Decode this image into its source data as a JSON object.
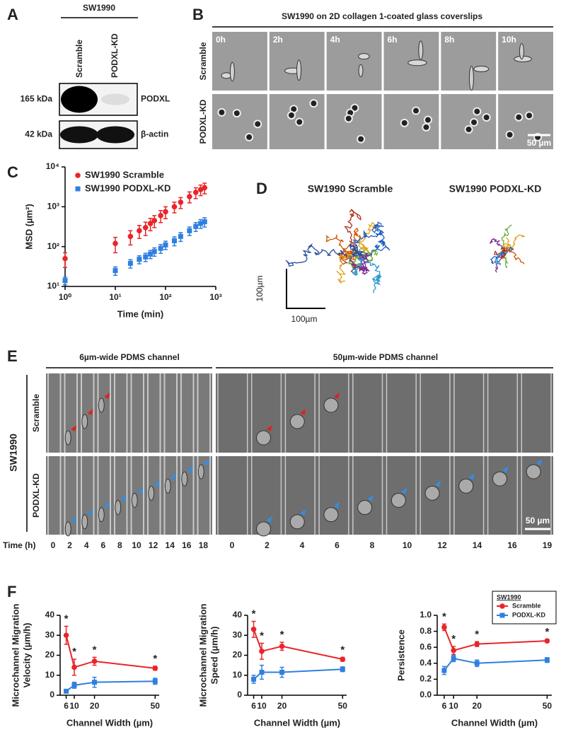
{
  "panel_labels": [
    "A",
    "B",
    "C",
    "D",
    "E",
    "F"
  ],
  "panel_a": {
    "cell_line": "SW1990",
    "lanes": [
      "Scramble",
      "PODXL-KD"
    ],
    "bands": [
      {
        "size": "165 kDa",
        "protein": "PODXL"
      },
      {
        "size": "42 kDa",
        "protein": "β-actin"
      }
    ]
  },
  "panel_b": {
    "title": "SW1990 on 2D collagen 1-coated glass coverslips",
    "times": [
      "0h",
      "2h",
      "4h",
      "6h",
      "8h",
      "10h"
    ],
    "rows": [
      "Scramble",
      "PODXL-KD"
    ],
    "scale_bar": "50 µm"
  },
  "panel_d": {
    "titles": [
      "SW1990 Scramble",
      "SW1990 PODXL-KD"
    ],
    "scale_labels": [
      "100µm",
      "100µm"
    ]
  },
  "panel_e": {
    "channels": [
      "6µm-wide PDMS channel",
      "50µm-wide PDMS channel"
    ],
    "cell_line": "SW1990",
    "rows": [
      "Scramble",
      "PODXL-KD"
    ],
    "scale_bar": "50 µm",
    "time_label": "Time (h)",
    "times_6um": [
      "0",
      "2",
      "4",
      "6",
      "8",
      "10",
      "12",
      "14",
      "16",
      "18"
    ],
    "times_50um": [
      "0",
      "2",
      "4",
      "6",
      "8",
      "10",
      "12",
      "14",
      "16",
      "19"
    ]
  },
  "chart_data": [
    {
      "type": "line",
      "xlabel": "Time (min)",
      "ylabel": "MSD (µm²)",
      "log_x": true,
      "log_y": true,
      "connect": false,
      "legend": "upper left",
      "xlim": [
        1,
        1000
      ],
      "ylim": [
        10,
        10000
      ],
      "xticks": [
        {
          "value": 1,
          "label": "10⁰"
        },
        {
          "value": 10,
          "label": "10¹"
        },
        {
          "value": 100,
          "label": "10²"
        },
        {
          "value": 1000,
          "label": "10³"
        }
      ],
      "yticks": [
        {
          "value": 10,
          "label": "10¹"
        },
        {
          "value": 100,
          "label": "10²"
        },
        {
          "value": 1000,
          "label": "10³"
        },
        {
          "value": 10000,
          "label": "10⁴"
        }
      ],
      "x": [
        1,
        10,
        20,
        30,
        40,
        50,
        60,
        80,
        100,
        150,
        200,
        300,
        400,
        500,
        600
      ],
      "series": [
        {
          "name": "SW1990 Scramble",
          "color": "#e8262a",
          "marker": "circle",
          "values": [
            50,
            120,
            180,
            250,
            300,
            380,
            450,
            600,
            750,
            1000,
            1300,
            1800,
            2300,
            2700,
            3000
          ],
          "errors": [
            20,
            50,
            70,
            90,
            110,
            130,
            150,
            200,
            250,
            300,
            400,
            550,
            700,
            800,
            900
          ]
        },
        {
          "name": "SW1990 PODXL-KD",
          "color": "#2f7fe0",
          "marker": "square",
          "values": [
            14,
            25,
            38,
            48,
            55,
            65,
            75,
            90,
            110,
            140,
            180,
            250,
            320,
            380,
            420
          ],
          "errors": [
            3,
            6,
            9,
            11,
            13,
            15,
            18,
            22,
            26,
            35,
            45,
            60,
            80,
            95,
            110
          ]
        }
      ]
    },
    {
      "type": "line",
      "xlabel": "Channel Width (µm)",
      "ylabel": [
        "Microchannel Migration",
        "Velocity (µm/h)"
      ],
      "connect": true,
      "xlim": [
        3,
        52
      ],
      "ylim": [
        0,
        40
      ],
      "xticks": [
        6,
        10,
        20,
        50
      ],
      "yticks": [
        0,
        10,
        20,
        30,
        40
      ],
      "x": [
        6,
        10,
        20,
        50
      ],
      "annotations": [
        "*",
        "*",
        "*",
        "*"
      ],
      "series": [
        {
          "name": "Scramble",
          "color": "#e8262a",
          "marker": "circle",
          "values": [
            30,
            14,
            17,
            13.5
          ],
          "errors": [
            4.5,
            4,
            2,
            1
          ]
        },
        {
          "name": "PODXL-KD",
          "color": "#2f7fe0",
          "marker": "square",
          "values": [
            2,
            5,
            6.5,
            7
          ],
          "errors": [
            0.5,
            1.5,
            2.5,
            1.5
          ]
        }
      ]
    },
    {
      "type": "line",
      "xlabel": "Channel Width (µm)",
      "ylabel": [
        "Microchannel Migration",
        "Speed (µm/h)"
      ],
      "connect": true,
      "xlim": [
        3,
        52
      ],
      "ylim": [
        0,
        40
      ],
      "xticks": [
        6,
        10,
        20,
        50
      ],
      "yticks": [
        0,
        10,
        20,
        30,
        40
      ],
      "x": [
        6,
        10,
        20,
        50
      ],
      "annotations": [
        "*",
        "*",
        "*",
        "*"
      ],
      "series": [
        {
          "name": "Scramble",
          "color": "#e8262a",
          "marker": "circle",
          "values": [
            33,
            22,
            24.5,
            18
          ],
          "errors": [
            4,
            4,
            2,
            1
          ]
        },
        {
          "name": "PODXL-KD",
          "color": "#2f7fe0",
          "marker": "square",
          "values": [
            8,
            11.5,
            11.5,
            13
          ],
          "errors": [
            2,
            3.5,
            2.5,
            1.2
          ]
        }
      ]
    },
    {
      "type": "line",
      "xlabel": "Channel Width (µm)",
      "ylabel": "Persistence",
      "connect": true,
      "legend": "upper right",
      "legend_title": "SW1990",
      "xlim": [
        3,
        52
      ],
      "ylim": [
        0,
        1
      ],
      "xticks": [
        6,
        10,
        20,
        50
      ],
      "yticks": [
        {
          "value": 0,
          "label": "0.0"
        },
        0.2,
        0.4,
        0.6,
        0.8,
        {
          "value": 1,
          "label": "1.0"
        }
      ],
      "x": [
        6,
        10,
        20,
        50
      ],
      "annotations": [
        "*",
        "*",
        "*",
        "*"
      ],
      "series": [
        {
          "name": "Scramble",
          "color": "#e8262a",
          "marker": "circle",
          "values": [
            0.85,
            0.56,
            0.64,
            0.68
          ],
          "errors": [
            0.04,
            0.05,
            0.03,
            0.02
          ]
        },
        {
          "name": "PODXL-KD",
          "color": "#2f7fe0",
          "marker": "square",
          "values": [
            0.31,
            0.46,
            0.4,
            0.44
          ],
          "errors": [
            0.05,
            0.04,
            0.04,
            0.03
          ]
        }
      ]
    }
  ]
}
